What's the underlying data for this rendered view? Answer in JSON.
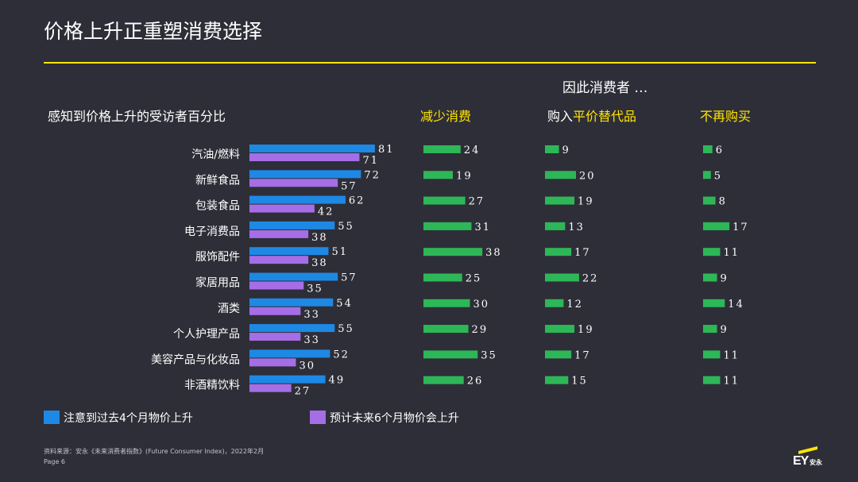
{
  "page": {
    "title": "价格上升正重塑消费选择",
    "consumer_heading": "因此消费者 …",
    "left_heading": "感知到价格上升的受访者百分比",
    "col_reduce": "减少消费",
    "col_substitute_prefix": "购入",
    "col_substitute_highlight": "平价替代品",
    "col_stop": "不再购买",
    "legend_past": "注意到过去4个月物价上升",
    "legend_future": "预计未来6个月物价会上升",
    "source": "资料来源：安永《未来消费者指数》(Future Consumer Index)，2022年2月",
    "page_number": "Page 6",
    "logo_text": "EY",
    "logo_cn": "安永"
  },
  "colors": {
    "background": "#2e2e38",
    "accent_yellow": "#ffe600",
    "past_blue": "#1e88e5",
    "future_purple": "#a56ee6",
    "green": "#2db757"
  },
  "chart_data": [
    {
      "type": "bar",
      "orientation": "horizontal",
      "title": "感知到价格上升的受访者百分比",
      "categories": [
        "汽油/燃料",
        "新鲜食品",
        "包装食品",
        "电子消费品",
        "服饰配件",
        "家居用品",
        "酒类",
        "个人护理产品",
        "美容产品与化妆品",
        "非酒精饮料"
      ],
      "series": [
        {
          "name": "注意到过去4个月物价上升",
          "values": [
            81,
            72,
            62,
            55,
            51,
            57,
            54,
            55,
            52,
            49
          ]
        },
        {
          "name": "预计未来6个月物价会上升",
          "values": [
            71,
            57,
            42,
            38,
            38,
            35,
            33,
            33,
            30,
            27
          ]
        }
      ],
      "xlim": [
        0,
        100
      ],
      "legend": "bottom"
    },
    {
      "type": "bar",
      "orientation": "horizontal",
      "title": "减少消费",
      "categories": [
        "汽油/燃料",
        "新鲜食品",
        "包装食品",
        "电子消费品",
        "服饰配件",
        "家居用品",
        "酒类",
        "个人护理产品",
        "美容产品与化妆品",
        "非酒精饮料"
      ],
      "values": [
        24,
        19,
        27,
        31,
        38,
        25,
        30,
        29,
        35,
        26
      ],
      "xlim": [
        0,
        100
      ]
    },
    {
      "type": "bar",
      "orientation": "horizontal",
      "title": "购入平价替代品",
      "categories": [
        "汽油/燃料",
        "新鲜食品",
        "包装食品",
        "电子消费品",
        "服饰配件",
        "家居用品",
        "酒类",
        "个人护理产品",
        "美容产品与化妆品",
        "非酒精饮料"
      ],
      "values": [
        9,
        20,
        19,
        13,
        17,
        22,
        12,
        19,
        17,
        15
      ],
      "xlim": [
        0,
        100
      ]
    },
    {
      "type": "bar",
      "orientation": "horizontal",
      "title": "不再购买",
      "categories": [
        "汽油/燃料",
        "新鲜食品",
        "包装食品",
        "电子消费品",
        "服饰配件",
        "家居用品",
        "酒类",
        "个人护理产品",
        "美容产品与化妆品",
        "非酒精饮料"
      ],
      "values": [
        6,
        5,
        8,
        17,
        11,
        9,
        14,
        9,
        11,
        11
      ],
      "xlim": [
        0,
        100
      ]
    }
  ]
}
